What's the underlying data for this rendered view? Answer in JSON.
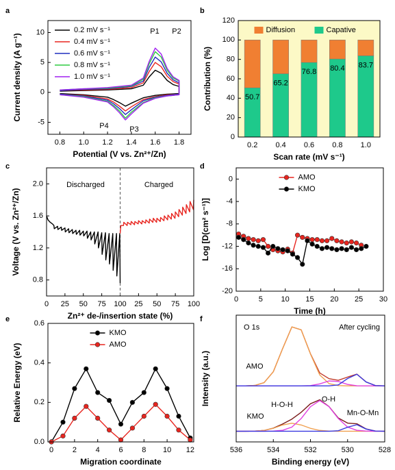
{
  "chart_data": [
    {
      "type": "line",
      "panel": "a",
      "xlabel": "Potential (V vs. Zn²⁺/Zn)",
      "ylabel": "Current density (A g⁻¹)",
      "xlim": [
        0.7,
        1.9
      ],
      "ylim": [
        -7,
        12
      ],
      "xticks": [
        0.8,
        {
          "value": 1,
          "label": "1.0"
        },
        1.2,
        1.4,
        1.6,
        1.8
      ],
      "yticks": [
        -5,
        0,
        5,
        10
      ],
      "legend": "upper left",
      "annotations": [
        "P1",
        "P2",
        "P3",
        "P4"
      ],
      "x": [
        0.8,
        1.0,
        1.2,
        1.4,
        1.5,
        1.55,
        1.6,
        1.65,
        1.7,
        1.75,
        1.8,
        1.8,
        1.7,
        1.6,
        1.5,
        1.4,
        1.35,
        1.3,
        1.25,
        1.2,
        1.0,
        0.8
      ],
      "series": [
        {
          "name": "0.2 mV s⁻¹",
          "color": "#000000",
          "values": [
            0.2,
            0.3,
            0.4,
            0.6,
            1.2,
            2.6,
            3.7,
            3.2,
            2.0,
            1.3,
            1.0,
            -0.2,
            -0.3,
            -0.5,
            -0.9,
            -1.8,
            -2.3,
            -1.7,
            -1.2,
            -0.8,
            -0.4,
            -0.2
          ]
        },
        {
          "name": "0.4 mV s⁻¹",
          "color": "#e8251f",
          "values": [
            0.3,
            0.4,
            0.5,
            0.8,
            1.6,
            3.5,
            5.0,
            4.3,
            2.7,
            1.8,
            1.4,
            -0.3,
            -0.4,
            -0.7,
            -1.2,
            -2.4,
            -3.1,
            -2.3,
            -1.6,
            -1.1,
            -0.5,
            -0.3
          ]
        },
        {
          "name": "0.6 mV s⁻¹",
          "color": "#1f2fbf",
          "values": [
            0.3,
            0.5,
            0.6,
            1.0,
            1.9,
            4.2,
            5.9,
            5.1,
            3.2,
            2.1,
            1.6,
            -0.3,
            -0.5,
            -0.8,
            -1.4,
            -2.9,
            -3.7,
            -2.7,
            -1.9,
            -1.3,
            -0.6,
            -0.3
          ]
        },
        {
          "name": "0.8 mV s⁻¹",
          "color": "#2ecc40",
          "values": [
            0.4,
            0.6,
            0.7,
            1.1,
            2.2,
            4.8,
            6.8,
            5.9,
            3.7,
            2.4,
            1.9,
            -0.4,
            -0.6,
            -0.9,
            -1.7,
            -3.3,
            -4.3,
            -3.1,
            -2.2,
            -1.5,
            -0.7,
            -0.4
          ]
        },
        {
          "name": "1.0 mV s⁻¹",
          "color": "#a020f0",
          "values": [
            0.4,
            0.6,
            0.8,
            1.2,
            2.4,
            5.2,
            7.4,
            6.4,
            4.0,
            2.6,
            2.0,
            -0.4,
            -0.6,
            -1.0,
            -1.8,
            -3.6,
            -4.6,
            -3.4,
            -2.4,
            -1.6,
            -0.8,
            -0.4
          ]
        }
      ]
    },
    {
      "type": "bar",
      "panel": "b",
      "xlabel": "Scan rate (mV s⁻¹)",
      "ylabel": "Contribution (%)",
      "categories": [
        "0.2",
        "0.4",
        "0.6",
        "0.8",
        "1.0"
      ],
      "ylim": [
        0,
        120
      ],
      "yticks": [
        0,
        20,
        40,
        60,
        80,
        100,
        120
      ],
      "legend": "upper center",
      "stacked": true,
      "series": [
        {
          "name": "Diffusion",
          "color": "#f07f32",
          "values": [
            49.3,
            34.8,
            23.2,
            19.6,
            16.3
          ]
        },
        {
          "name": "Capative",
          "color": "#1ec98b",
          "values": [
            50.7,
            65.2,
            76.8,
            80.4,
            83.7
          ],
          "show_values": true
        }
      ]
    },
    {
      "type": "line",
      "panel": "c",
      "xlabel": "Zn²⁺ de-/insertion state (%)",
      "ylabel": "Voltage (V vs. Zn²⁺/Zn)",
      "xlim": [
        0,
        200
      ],
      "ylim": [
        0.6,
        2.2
      ],
      "xticks": [
        0,
        25,
        50,
        75,
        100,
        {
          "value": 125,
          "label": "25"
        },
        {
          "value": 150,
          "label": "50"
        },
        {
          "value": 175,
          "label": "75"
        },
        {
          "value": 200,
          "label": "100"
        }
      ],
      "yticks": [
        0.8,
        1.2,
        1.6,
        {
          "value": 2,
          "label": "2.0"
        }
      ],
      "series": [
        {
          "name": "Discharged",
          "color": "#000000",
          "x": [
            0,
            2,
            5,
            8,
            10,
            10.5,
            15,
            15.5,
            20,
            20.5,
            25,
            25.5,
            30,
            30.5,
            35,
            35.5,
            40,
            40.5,
            45,
            45.5,
            50,
            50.5,
            55,
            55.5,
            60,
            60.5,
            65,
            65.5,
            70,
            70.5,
            75,
            75.5,
            80,
            80.5,
            85,
            85.5,
            90,
            90.5,
            95,
            95.5,
            99.5,
            100
          ],
          "values": [
            1.6,
            1.55,
            1.52,
            1.5,
            1.48,
            1.44,
            1.47,
            1.43,
            1.46,
            1.42,
            1.45,
            1.4,
            1.44,
            1.39,
            1.43,
            1.38,
            1.42,
            1.37,
            1.42,
            1.36,
            1.41,
            1.35,
            1.41,
            1.32,
            1.4,
            1.3,
            1.4,
            1.25,
            1.4,
            1.2,
            1.39,
            1.12,
            1.39,
            1.05,
            1.38,
            1.0,
            1.38,
            0.92,
            1.38,
            0.85,
            1.38,
            0.76
          ]
        },
        {
          "name": "Charged",
          "color": "#e8251f",
          "x": [
            100,
            101,
            104.5,
            105,
            109.5,
            110,
            114.5,
            115,
            119.5,
            120,
            124.5,
            125,
            129.5,
            130,
            134.5,
            135,
            139.5,
            140,
            144.5,
            145,
            149.5,
            150,
            154.5,
            155,
            159.5,
            160,
            164.5,
            165,
            169.5,
            170,
            174.5,
            175,
            179.5,
            180,
            184.5,
            185,
            189.5,
            190,
            194.5,
            195,
            199.5,
            200
          ],
          "values": [
            1.38,
            1.48,
            1.48,
            1.52,
            1.48,
            1.52,
            1.49,
            1.53,
            1.49,
            1.53,
            1.5,
            1.54,
            1.5,
            1.54,
            1.51,
            1.55,
            1.51,
            1.56,
            1.52,
            1.57,
            1.52,
            1.57,
            1.53,
            1.58,
            1.54,
            1.6,
            1.55,
            1.61,
            1.56,
            1.63,
            1.57,
            1.65,
            1.59,
            1.68,
            1.61,
            1.71,
            1.63,
            1.74,
            1.65,
            1.78,
            1.68,
            1.8
          ]
        }
      ]
    },
    {
      "type": "line",
      "panel": "d",
      "xlabel": "Time (h)",
      "ylabel": "Log [D(cm² s⁻¹)]",
      "xlim": [
        0,
        30
      ],
      "ylim": [
        -20,
        2
      ],
      "xticks": [
        0,
        5,
        10,
        15,
        20,
        25,
        30
      ],
      "yticks": [
        -20,
        -16,
        -12,
        -8,
        -4,
        0
      ],
      "legend": "upper center",
      "markers": true,
      "series": [
        {
          "name": "AMO",
          "color": "#e8251f",
          "x": [
            0.5,
            1.5,
            2.5,
            3.5,
            4.5,
            5.5,
            6.5,
            7.5,
            8.5,
            9.5,
            10.5,
            11.5,
            12.5,
            13.5,
            14.5,
            15.5,
            16.5,
            17.5,
            18.5,
            19.5,
            20.5,
            21.5,
            22.5,
            23.5,
            24.5,
            25.5
          ],
          "values": [
            -9.8,
            -10.2,
            -10.6,
            -10.8,
            -11.0,
            -10.8,
            -12.0,
            -12.6,
            -12.8,
            -13.0,
            -12.5,
            -13.2,
            -10.0,
            -10.4,
            -10.6,
            -10.8,
            -10.8,
            -11.0,
            -11.0,
            -10.6,
            -11.0,
            -11.2,
            -11.4,
            -11.2,
            -11.4,
            -11.8
          ]
        },
        {
          "name": "KMO",
          "color": "#000000",
          "x": [
            0.5,
            1.5,
            2.5,
            3.5,
            4.5,
            5.5,
            6.5,
            7.5,
            8.5,
            9.5,
            10.5,
            11.5,
            12.5,
            13.5,
            14.5,
            15.5,
            16.5,
            17.5,
            18.5,
            19.5,
            20.5,
            21.5,
            22.5,
            23.5,
            24.5,
            25.5,
            26.5
          ],
          "values": [
            -10.4,
            -10.8,
            -11.4,
            -11.8,
            -12.0,
            -12.2,
            -13.2,
            -12.0,
            -12.4,
            -12.6,
            -12.8,
            -13.4,
            -14.0,
            -15.2,
            -11.0,
            -11.6,
            -12.0,
            -12.4,
            -12.2,
            -12.4,
            -12.6,
            -12.4,
            -12.6,
            -12.2,
            -12.6,
            -12.4,
            -12.0
          ]
        }
      ]
    },
    {
      "type": "line",
      "panel": "e",
      "xlabel": "Migration coordinate",
      "ylabel": "Relative Energy (eV)",
      "xlim": [
        -0.3,
        12.3
      ],
      "ylim": [
        0,
        0.6
      ],
      "xticks": [
        0,
        2,
        4,
        6,
        8,
        10,
        12
      ],
      "yticks": [
        {
          "value": 0,
          "label": "0.0"
        },
        0.2,
        0.4,
        0.6
      ],
      "legend": "upper center",
      "markers": true,
      "x": [
        0,
        1,
        2,
        3,
        4,
        5,
        6,
        7,
        8,
        9,
        10,
        11,
        12
      ],
      "series": [
        {
          "name": "KMO",
          "color": "#000000",
          "values": [
            0,
            0.1,
            0.27,
            0.37,
            0.25,
            0.21,
            0.09,
            0.2,
            0.25,
            0.37,
            0.27,
            0.13,
            0.02
          ]
        },
        {
          "name": "AMO",
          "color": "#e8251f",
          "values": [
            0,
            0.03,
            0.12,
            0.18,
            0.12,
            0.06,
            0.01,
            0.07,
            0.13,
            0.19,
            0.13,
            0.06,
            0.01
          ]
        }
      ]
    },
    {
      "type": "line",
      "panel": "f",
      "xlabel": "Binding energy (eV)",
      "ylabel": "Intensity (a.u.)",
      "xlim": [
        536,
        528
      ],
      "ylim": [
        0,
        9.5
      ],
      "xticks": [
        536,
        534,
        532,
        530,
        528
      ],
      "annotations": [
        "O 1s",
        "After cycling"
      ],
      "x": [
        536,
        535.5,
        535,
        534.5,
        534,
        533.5,
        533,
        532.5,
        532,
        531.5,
        531,
        530.5,
        530,
        529.5,
        529,
        528.5,
        528
      ],
      "series": [
        {
          "name": "AMO",
          "color": "#c0392b",
          "values": [
            4.2,
            4.2,
            4.23,
            4.44,
            5.26,
            6.99,
            8.62,
            8.4,
            6.61,
            5.17,
            4.74,
            4.62,
            4.86,
            5.08,
            4.49,
            4.22,
            4.2
          ]
        },
        {
          "color": "#f0a050",
          "values": [
            4.2,
            4.2,
            4.23,
            4.44,
            5.26,
            6.99,
            8.62,
            8.4,
            6.59,
            5.02,
            4.37,
            4.22,
            4.2,
            4.2,
            4.2,
            4.2,
            4.2
          ]
        },
        {
          "color": "#e040e0",
          "values": [
            4.2,
            4.2,
            4.2,
            4.2,
            4.2,
            4.2,
            4.2,
            4.2,
            4.22,
            4.35,
            4.57,
            4.53,
            4.31,
            4.21,
            4.2,
            4.2,
            4.2
          ]
        },
        {
          "color": "#3a3ae0",
          "values": [
            4.2,
            4.2,
            4.2,
            4.2,
            4.2,
            4.2,
            4.2,
            4.2,
            4.2,
            4.2,
            4.2,
            4.27,
            4.75,
            5.07,
            4.49,
            4.22,
            4.2
          ]
        },
        {
          "name": "KMO",
          "color": "#7a1a1a",
          "values": [
            0.8,
            0.8,
            0.81,
            0.86,
            1.03,
            1.34,
            1.71,
            2.22,
            2.86,
            3.16,
            2.65,
            1.79,
            1.41,
            1.36,
            0.97,
            0.81,
            0.8
          ]
        },
        {
          "name": "H-O-H",
          "color": "#f0a050",
          "values": [
            0.8,
            0.8,
            0.81,
            0.86,
            1.02,
            1.27,
            1.4,
            1.27,
            1.02,
            0.86,
            0.81,
            0.8,
            0.8,
            0.8,
            0.8,
            0.8,
            0.8
          ]
        },
        {
          "name": "O-H",
          "color": "#e040e0",
          "values": [
            0.8,
            0.8,
            0.8,
            0.8,
            0.81,
            0.87,
            1.11,
            1.75,
            2.64,
            3.1,
            2.64,
            1.75,
            1.11,
            0.87,
            0.81,
            0.8,
            0.8
          ]
        },
        {
          "name": "Mn-O-Mn",
          "color": "#3a3ae0",
          "values": [
            0.8,
            0.8,
            0.8,
            0.8,
            0.8,
            0.8,
            0.8,
            0.8,
            0.8,
            0.8,
            0.8,
            0.84,
            1.1,
            1.29,
            0.96,
            0.81,
            0.8
          ]
        }
      ]
    }
  ]
}
